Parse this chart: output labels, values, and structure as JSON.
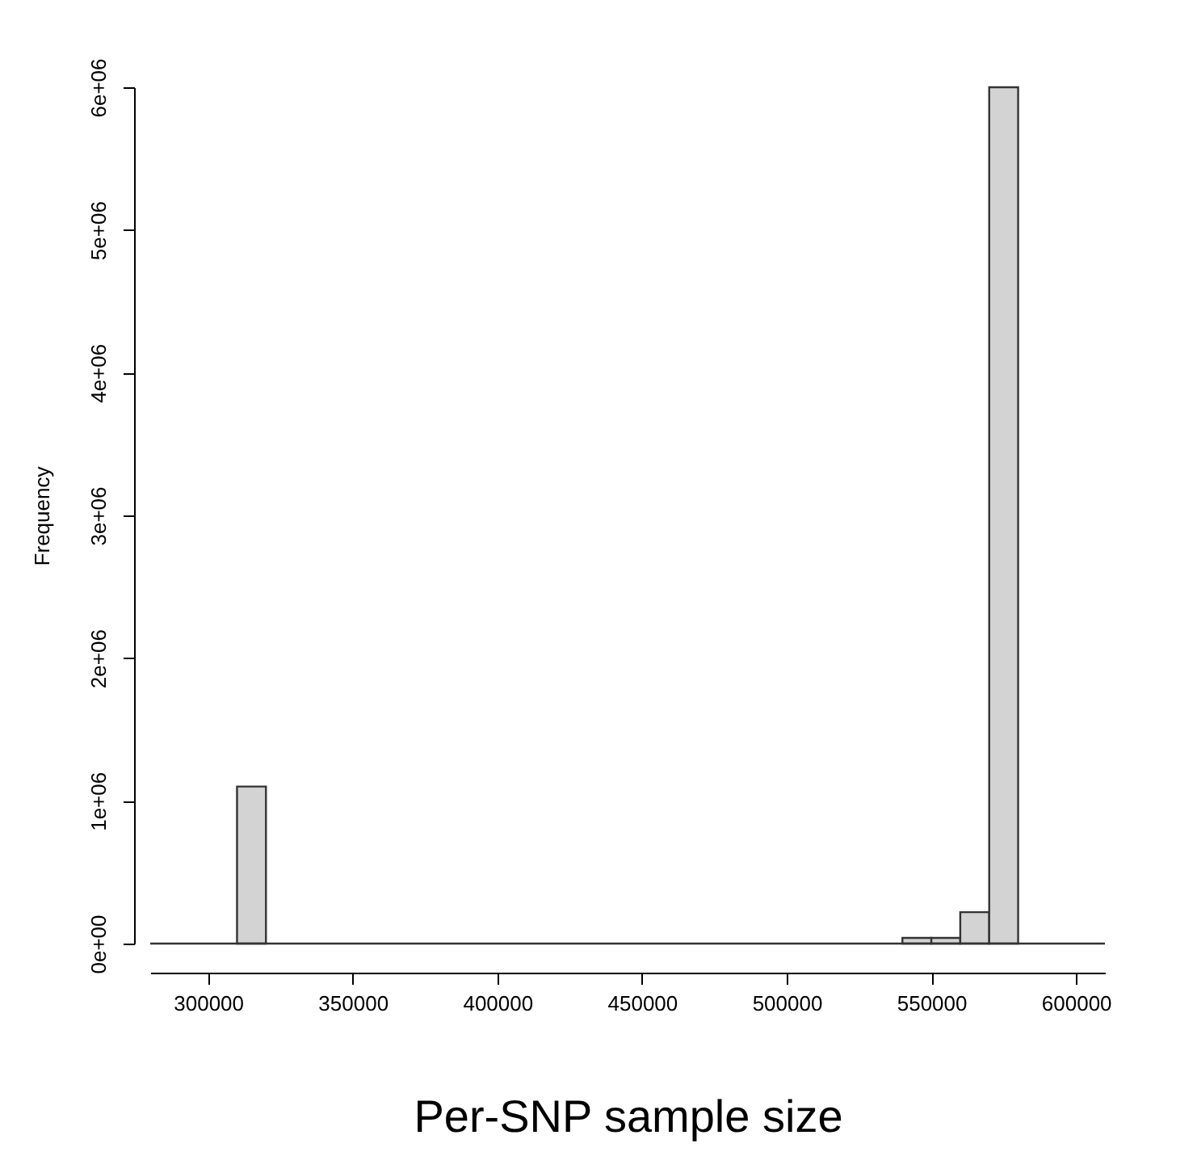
{
  "chart_data": {
    "type": "histogram",
    "xlabel": "Per-SNP sample size",
    "ylabel": "Frequency",
    "bins": [
      280000,
      290000,
      300000,
      310000,
      320000,
      330000,
      340000,
      350000,
      360000,
      370000,
      380000,
      390000,
      400000,
      410000,
      420000,
      430000,
      440000,
      450000,
      460000,
      470000,
      480000,
      490000,
      500000,
      510000,
      520000,
      530000,
      540000,
      550000,
      560000,
      570000,
      580000,
      590000,
      600000,
      610000
    ],
    "values": [
      0,
      0,
      0,
      1100000,
      0,
      0,
      0,
      0,
      0,
      0,
      0,
      0,
      0,
      0,
      0,
      0,
      0,
      0,
      0,
      0,
      0,
      0,
      0,
      0,
      0,
      0,
      40000,
      40000,
      220000,
      6000000,
      0,
      0,
      0
    ],
    "color": "#d3d3d3",
    "xlim": [
      280000,
      610000
    ],
    "ylim": [
      0,
      6000000
    ],
    "xticks": [
      300000,
      350000,
      400000,
      450000,
      500000,
      550000,
      600000
    ],
    "yticks": [
      {
        "value": 0,
        "label": "0e+00"
      },
      {
        "value": 1000000,
        "label": "1e+06"
      },
      {
        "value": 2000000,
        "label": "2e+06"
      },
      {
        "value": 3000000,
        "label": "3e+06"
      },
      {
        "value": 4000000,
        "label": "4e+06"
      },
      {
        "value": 5000000,
        "label": "5e+06"
      },
      {
        "value": 6000000,
        "label": "6e+06"
      }
    ],
    "grid": false
  }
}
